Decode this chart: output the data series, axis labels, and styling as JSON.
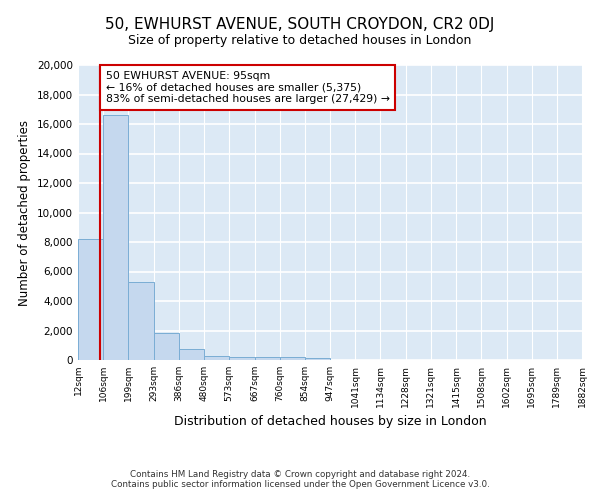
{
  "title1": "50, EWHURST AVENUE, SOUTH CROYDON, CR2 0DJ",
  "title2": "Size of property relative to detached houses in London",
  "xlabel": "Distribution of detached houses by size in London",
  "ylabel": "Number of detached properties",
  "annotation_line1": "50 EWHURST AVENUE: 95sqm",
  "annotation_line2": "← 16% of detached houses are smaller (5,375)",
  "annotation_line3": "83% of semi-detached houses are larger (27,429) →",
  "bin_edges": [
    12,
    106,
    199,
    293,
    386,
    480,
    573,
    667,
    760,
    854,
    947,
    1041,
    1134,
    1228,
    1321,
    1415,
    1508,
    1602,
    1695,
    1789,
    1882
  ],
  "bin_counts": [
    8200,
    16600,
    5300,
    1800,
    750,
    300,
    230,
    200,
    175,
    150,
    0,
    0,
    0,
    0,
    0,
    0,
    0,
    0,
    0,
    0
  ],
  "bar_color": "#c5d8ee",
  "bar_edge_color": "#7aadd4",
  "vline_color": "#cc0000",
  "vline_x": 95,
  "background_color": "#dce9f5",
  "grid_color": "#ffffff",
  "ylim_max": 20000,
  "yticks": [
    0,
    2000,
    4000,
    6000,
    8000,
    10000,
    12000,
    14000,
    16000,
    18000,
    20000
  ],
  "footer_line1": "Contains HM Land Registry data © Crown copyright and database right 2024.",
  "footer_line2": "Contains public sector information licensed under the Open Government Licence v3.0."
}
